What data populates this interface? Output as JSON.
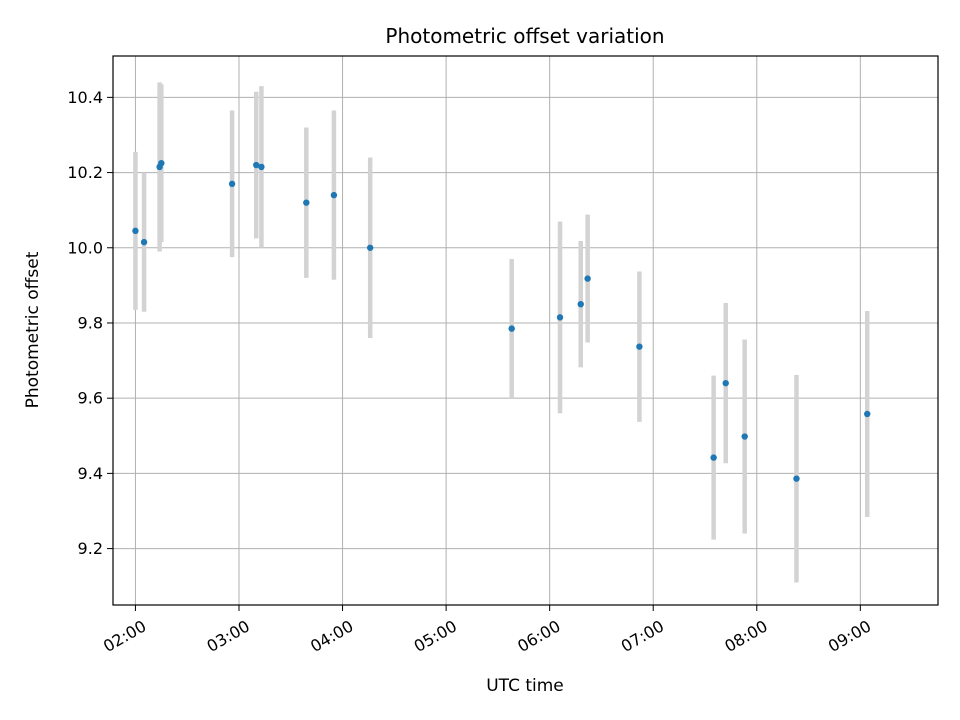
{
  "chart_data": {
    "type": "scatter",
    "title": "Photometric offset variation",
    "xlabel": "UTC time",
    "ylabel": "Photometric offset",
    "xlim": [
      "01:47",
      "09:45"
    ],
    "ylim": [
      9.05,
      10.51
    ],
    "xticks": [
      "02:00",
      "03:00",
      "04:00",
      "05:00",
      "06:00",
      "07:00",
      "08:00",
      "09:00"
    ],
    "yticks": [
      9.2,
      9.4,
      9.6,
      9.8,
      10.0,
      10.2,
      10.4
    ],
    "grid": true,
    "colors": {
      "point": "#1f77b4",
      "errorbar": "#d3d3d3",
      "grid": "#b0b0b0"
    },
    "points": [
      {
        "x": "02:00",
        "y": 10.045,
        "err": 0.21
      },
      {
        "x": "02:05",
        "y": 10.015,
        "err": 0.185
      },
      {
        "x": "02:14",
        "y": 10.215,
        "err": 0.225
      },
      {
        "x": "02:15",
        "y": 10.225,
        "err": 0.21
      },
      {
        "x": "02:56",
        "y": 10.17,
        "err": 0.195
      },
      {
        "x": "03:10",
        "y": 10.22,
        "err": 0.195
      },
      {
        "x": "03:13",
        "y": 10.215,
        "err": 0.215
      },
      {
        "x": "03:39",
        "y": 10.12,
        "err": 0.2
      },
      {
        "x": "03:55",
        "y": 10.14,
        "err": 0.225
      },
      {
        "x": "04:16",
        "y": 10.0,
        "err": 0.24
      },
      {
        "x": "05:38",
        "y": 9.785,
        "err": 0.185
      },
      {
        "x": "06:06",
        "y": 9.815,
        "err": 0.255
      },
      {
        "x": "06:18",
        "y": 9.85,
        "err": 0.168
      },
      {
        "x": "06:22",
        "y": 9.918,
        "err": 0.17
      },
      {
        "x": "06:52",
        "y": 9.737,
        "err": 0.2
      },
      {
        "x": "07:35",
        "y": 9.442,
        "err": 0.218
      },
      {
        "x": "07:42",
        "y": 9.64,
        "err": 0.213
      },
      {
        "x": "07:53",
        "y": 9.498,
        "err": 0.258
      },
      {
        "x": "08:23",
        "y": 9.386,
        "err": 0.276
      },
      {
        "x": "09:04",
        "y": 9.558,
        "err": 0.274
      }
    ]
  }
}
